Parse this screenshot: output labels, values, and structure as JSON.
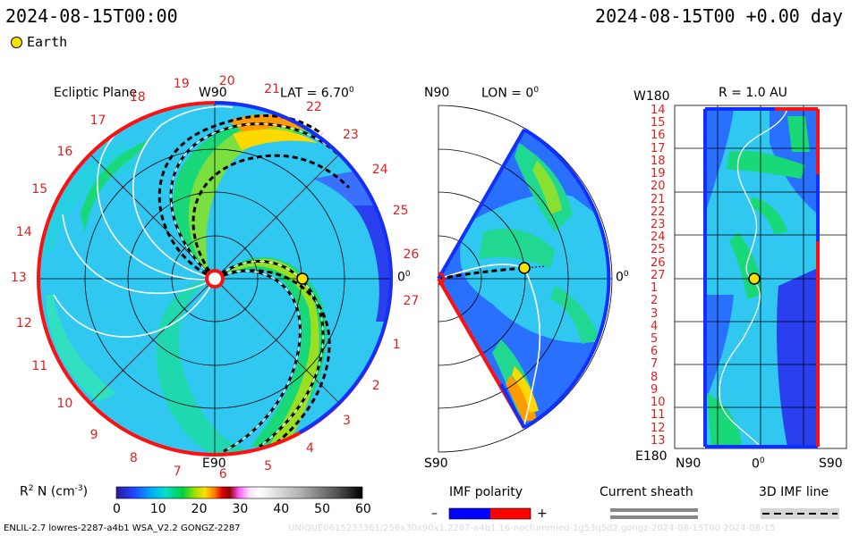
{
  "header": {
    "time_left": "2024-08-15T00:00",
    "time_right": "2024-08-15T00 +0.00 day"
  },
  "legend": {
    "earth_label": "Earth"
  },
  "panels": {
    "ecliptic": {
      "title": "Ecliptic Plane",
      "lat_label": "LAT = 6.70",
      "deg_sym": "0",
      "top_label": "W90",
      "bottom_label": "E90",
      "right_label": "0",
      "carrington_numbers": [
        "19",
        "20",
        "21",
        "22",
        "23",
        "24",
        "25",
        "26",
        "27",
        "1",
        "2",
        "3",
        "4",
        "5",
        "6",
        "7",
        "8",
        "9",
        "10",
        "11",
        "12",
        "13",
        "14",
        "15",
        "16",
        "17",
        "18"
      ]
    },
    "meridional": {
      "top_label": "N90",
      "lon_label": "LON = 0",
      "deg_sym": "0",
      "bottom_label": "S90",
      "right_label": "0"
    },
    "synoptic": {
      "top_left_label": "W180",
      "r_label": "R = 1.0 AU",
      "bottom_left_label": "E180",
      "x_tick_labels": [
        "N90",
        "0",
        "S90"
      ],
      "deg_sym": "0",
      "y_tick_labels": [
        "14",
        "15",
        "16",
        "17",
        "18",
        "19",
        "20",
        "21",
        "22",
        "23",
        "24",
        "25",
        "26",
        "27",
        "1",
        "2",
        "3",
        "4",
        "5",
        "6",
        "7",
        "8",
        "9",
        "10",
        "11",
        "12",
        "13"
      ]
    }
  },
  "colorbar": {
    "label": "R",
    "label_sup": "2",
    "label_rest": " N (cm",
    "label_exp": "-3",
    "label_end": ")",
    "ticks": [
      "0",
      "10",
      "20",
      "30",
      "40",
      "50",
      "60"
    ]
  },
  "imf_legend": {
    "title": "IMF polarity",
    "minus": "–",
    "plus": "+",
    "negative_color": "#0000ff",
    "positive_color": "#ff0000"
  },
  "sheath_legend": {
    "title": "Current sheath"
  },
  "imf3d_legend": {
    "title": "3D IMF line"
  },
  "footer": {
    "left": "ENLIL-2.7 lowres-2287-a4b1 WSA_V2.2 GONGZ-2287",
    "right": "UNIQUE0615233361/256x30x90x1.2287-a4b1.16-nocfummied-1g53q5d2.gongz-2024-08-15T00 2024-08-15"
  },
  "chart_data": [
    {
      "type": "heatmap",
      "panel": "ecliptic",
      "title": "Ecliptic Plane",
      "quantity": "R^2 N (cm^-3)",
      "color_range": [
        0,
        60
      ],
      "earth": {
        "lon_deg": 0,
        "r_au": 1.0
      },
      "structure": "spiral density enhancements (green/yellow/orange arms), current sheath shown as dashed black spirals, magnetic field lines white",
      "polarity_ring": "mostly red (positive) on left/bottom, blue (negative) on right/top"
    },
    {
      "type": "heatmap",
      "panel": "meridional",
      "quantity": "R^2 N (cm^-3)",
      "lat_range": [
        -60,
        60
      ],
      "color_range": [
        0,
        60
      ],
      "earth": {
        "lat_deg": 6.7,
        "r_au": 1.0
      }
    },
    {
      "type": "heatmap",
      "panel": "synoptic",
      "quantity": "R^2 N (cm^-3)",
      "x_range_deg": [
        90,
        -90
      ],
      "y_range": "W180 to E180",
      "color_range": [
        0,
        60
      ],
      "earth": {
        "lat_deg": 6.7,
        "lon_deg": 0
      }
    }
  ]
}
